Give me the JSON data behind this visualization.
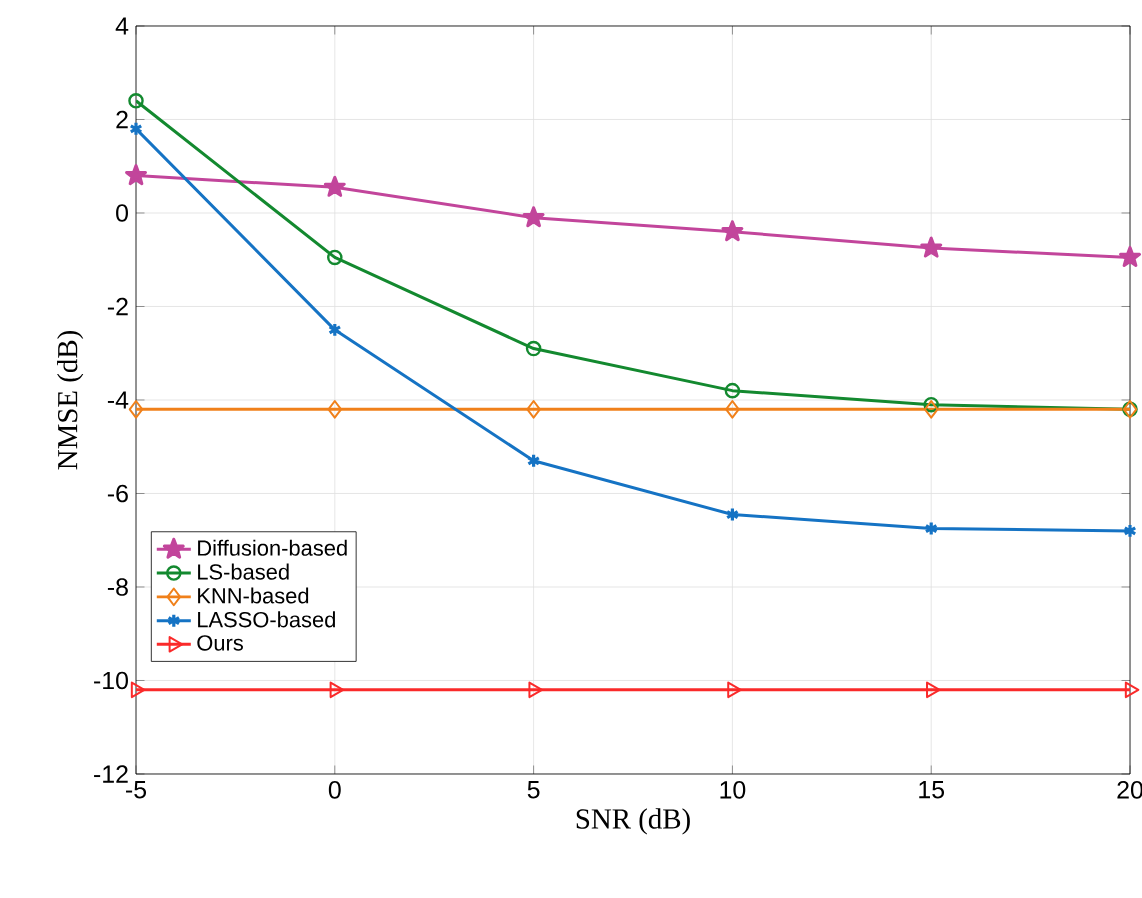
{
  "chart_data": {
    "type": "line",
    "xlabel": "SNR (dB)",
    "ylabel": "NMSE (dB)",
    "x": [
      -5,
      0,
      5,
      10,
      15,
      20
    ],
    "xlim": [
      -5,
      20
    ],
    "xticks": [
      -5,
      0,
      5,
      10,
      15,
      20
    ],
    "ylim": [
      -12,
      4
    ],
    "yticks": [
      -12,
      -10,
      -8,
      -6,
      -4,
      -2,
      0,
      2,
      4
    ],
    "grid": true,
    "legend": "bottom left",
    "line_style": "solid",
    "series": [
      {
        "name": "Diffusion-based",
        "color": "#c2459b",
        "marker": "star",
        "values": [
          0.8,
          0.55,
          -0.1,
          -0.4,
          -0.75,
          -0.95
        ]
      },
      {
        "name": "LS-based",
        "color": "#13892f",
        "marker": "circle",
        "values": [
          2.4,
          -0.95,
          -2.9,
          -3.8,
          -4.1,
          -4.2
        ]
      },
      {
        "name": "KNN-based",
        "color": "#f0801a",
        "marker": "diamond",
        "values": [
          -4.2,
          -4.2,
          -4.2,
          -4.2,
          -4.2,
          -4.2
        ]
      },
      {
        "name": "LASSO-based",
        "color": "#1573c4",
        "marker": "cross",
        "values": [
          1.8,
          -2.5,
          -5.3,
          -6.45,
          -6.75,
          -6.8
        ]
      },
      {
        "name": "Ours",
        "color": "#fa2a2a",
        "marker": "triangle",
        "values": [
          -10.2,
          -10.2,
          -10.2,
          -10.2,
          -10.2,
          -10.2
        ]
      }
    ]
  }
}
